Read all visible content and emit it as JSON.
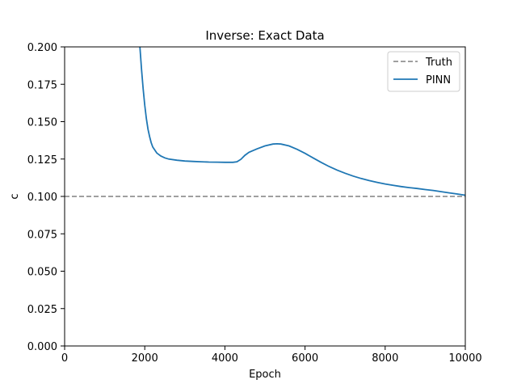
{
  "chart_data": {
    "type": "line",
    "title": "Inverse: Exact Data",
    "xlabel": "Epoch",
    "ylabel": "c",
    "xlim": [
      0,
      10000
    ],
    "ylim": [
      0.0,
      0.2
    ],
    "x_ticks": [
      "0",
      "2000",
      "4000",
      "6000",
      "8000",
      "10000"
    ],
    "y_ticks": [
      "0.000",
      "0.025",
      "0.050",
      "0.075",
      "0.100",
      "0.125",
      "0.150",
      "0.175",
      "0.200"
    ],
    "grid": false,
    "legend_position": "top-right",
    "series": [
      {
        "name": "Truth",
        "style": "dashed",
        "color": "#808080",
        "x": [
          0,
          10000
        ],
        "y": [
          0.1,
          0.1
        ]
      },
      {
        "name": "PINN",
        "style": "solid",
        "color": "#1f77b4",
        "x": [
          1880,
          1920,
          1960,
          2000,
          2040,
          2080,
          2120,
          2160,
          2200,
          2300,
          2400,
          2500,
          2600,
          2800,
          3000,
          3200,
          3400,
          3600,
          3800,
          4000,
          4200,
          4300,
          4400,
          4500,
          4600,
          4800,
          5000,
          5200,
          5300,
          5400,
          5600,
          5800,
          6000,
          6200,
          6400,
          6600,
          6800,
          7000,
          7200,
          7400,
          7600,
          7800,
          8000,
          8200,
          8400,
          8600,
          8800,
          9000,
          9200,
          9400,
          9600,
          9800,
          10000
        ],
        "y": [
          0.2,
          0.185,
          0.172,
          0.161,
          0.152,
          0.145,
          0.14,
          0.136,
          0.133,
          0.129,
          0.127,
          0.1258,
          0.125,
          0.1242,
          0.1237,
          0.1234,
          0.1232,
          0.123,
          0.1229,
          0.1228,
          0.1228,
          0.1232,
          0.1248,
          0.1275,
          0.1295,
          0.1318,
          0.1338,
          0.135,
          0.1352,
          0.135,
          0.1338,
          0.1315,
          0.1288,
          0.1258,
          0.1228,
          0.12,
          0.1176,
          0.1155,
          0.1136,
          0.112,
          0.1106,
          0.1094,
          0.1083,
          0.1074,
          0.1066,
          0.1059,
          0.1053,
          0.1046,
          0.104,
          0.1032,
          0.1024,
          0.1016,
          0.1008
        ]
      }
    ]
  }
}
